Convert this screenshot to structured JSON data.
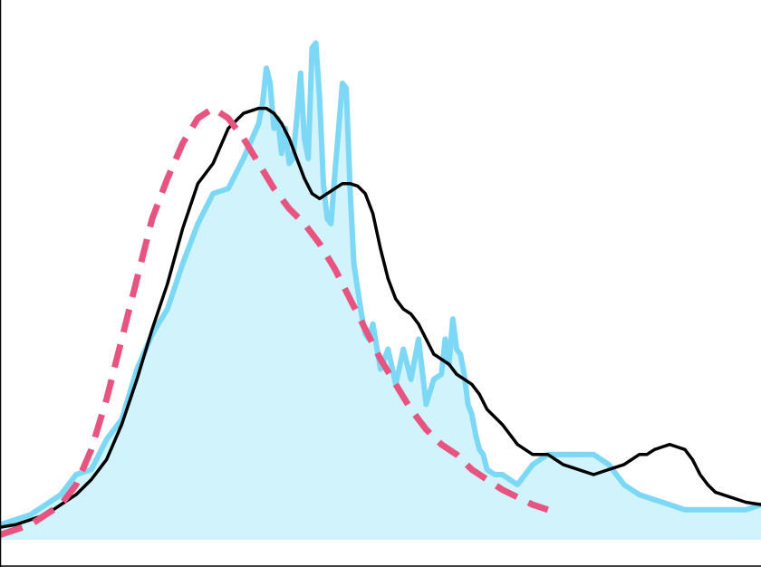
{
  "chart_data": {
    "type": "area",
    "title": "",
    "xlabel": "",
    "ylabel": "",
    "grid": false,
    "legend": "none",
    "xlim": [
      0,
      100
    ],
    "ylim": [
      0,
      100
    ],
    "x": [
      0,
      2,
      4,
      6,
      8,
      10,
      12,
      14,
      16,
      18,
      20,
      22,
      24,
      26,
      28,
      30,
      32,
      34,
      34.5,
      35,
      35.5,
      36,
      36.5,
      37,
      37.5,
      38,
      38.5,
      39,
      39.5,
      40,
      40.5,
      41,
      41.5,
      42,
      42.5,
      43,
      43.5,
      44,
      44.5,
      45,
      45.5,
      46,
      46.5,
      47,
      47.5,
      48,
      48.5,
      49,
      50,
      51,
      52,
      53,
      54,
      55,
      56,
      57,
      58,
      58.5,
      59,
      59.5,
      60,
      60.5,
      61,
      61.5,
      62,
      62.5,
      63,
      63.5,
      64,
      65,
      66,
      68,
      70,
      72,
      74,
      76,
      78,
      80,
      82,
      84,
      86,
      88,
      90,
      92,
      94,
      96,
      98,
      100
    ],
    "series": [
      {
        "values": [
          3,
          4,
          5,
          7,
          9,
          13,
          14,
          20,
          24,
          34,
          41,
          46,
          55,
          63,
          69,
          70,
          76,
          83,
          87,
          94,
          91,
          82,
          84,
          77,
          82,
          75,
          76,
          84,
          93,
          80,
          76,
          98,
          99,
          88,
          71,
          64,
          63,
          73,
          82,
          91,
          90,
          70,
          55,
          50,
          45,
          41,
          40,
          43,
          34,
          38,
          31,
          38,
          32,
          40,
          27,
          32,
          33,
          40,
          35,
          44,
          38,
          37,
          33,
          27,
          25,
          21,
          18,
          17,
          14,
          13,
          13,
          11,
          15,
          17,
          17,
          17,
          17,
          15,
          11,
          9,
          8,
          7,
          6,
          6,
          6,
          6,
          6,
          7
        ],
        "color": "#7dd8f5",
        "fill": "#d1f3fc"
      },
      {
        "values": [
          2.5,
          3,
          4,
          5,
          7,
          9,
          12,
          16,
          23,
          32,
          42,
          51,
          62,
          71,
          75,
          82,
          85,
          86,
          86,
          85,
          83,
          80,
          76,
          72,
          69,
          68,
          69,
          70,
          71,
          71,
          70.5,
          69,
          65,
          58,
          52,
          48,
          46,
          45,
          43,
          40,
          37,
          36,
          35,
          33,
          32,
          31,
          29,
          26,
          23,
          19,
          17,
          17,
          15,
          14,
          13,
          14,
          15,
          16,
          17,
          17,
          18,
          18.5,
          19,
          18.5,
          18,
          16,
          13,
          11,
          9.5,
          8.5,
          7.5,
          7
        ],
        "x": [
          0,
          2,
          4,
          6,
          8,
          10,
          12,
          14,
          16,
          18,
          20,
          22,
          24,
          26,
          28,
          30,
          32,
          34,
          35,
          36,
          37,
          38,
          39,
          40,
          41,
          42,
          43,
          44,
          45,
          46,
          47,
          48,
          49,
          50,
          51,
          52,
          53,
          54,
          55,
          56,
          57,
          58,
          59,
          60,
          61,
          62,
          63,
          64,
          66,
          68,
          70,
          72,
          74,
          76,
          78,
          80,
          82,
          83,
          84,
          85,
          86,
          87,
          88,
          89,
          90,
          91,
          92,
          93,
          94,
          96,
          98,
          100
        ],
        "color": "#000000"
      },
      {
        "values": [
          1,
          2,
          3,
          5,
          7,
          11,
          18,
          28,
          40,
          52,
          64,
          72,
          79,
          84,
          86,
          84,
          80,
          75,
          70,
          66,
          63,
          59,
          54,
          48,
          42,
          36,
          31,
          26,
          22,
          19,
          17,
          14,
          12,
          10,
          8.5,
          7,
          6
        ],
        "x": [
          0,
          2,
          4,
          6,
          8,
          10,
          12,
          14,
          16,
          18,
          20,
          22,
          24,
          26,
          28,
          30,
          32,
          34,
          36,
          38,
          40,
          42,
          44,
          46,
          48,
          50,
          52,
          54,
          56,
          58,
          60,
          62,
          64,
          66,
          68,
          70,
          72
        ],
        "color": "#e75480",
        "dashed": true
      }
    ]
  }
}
